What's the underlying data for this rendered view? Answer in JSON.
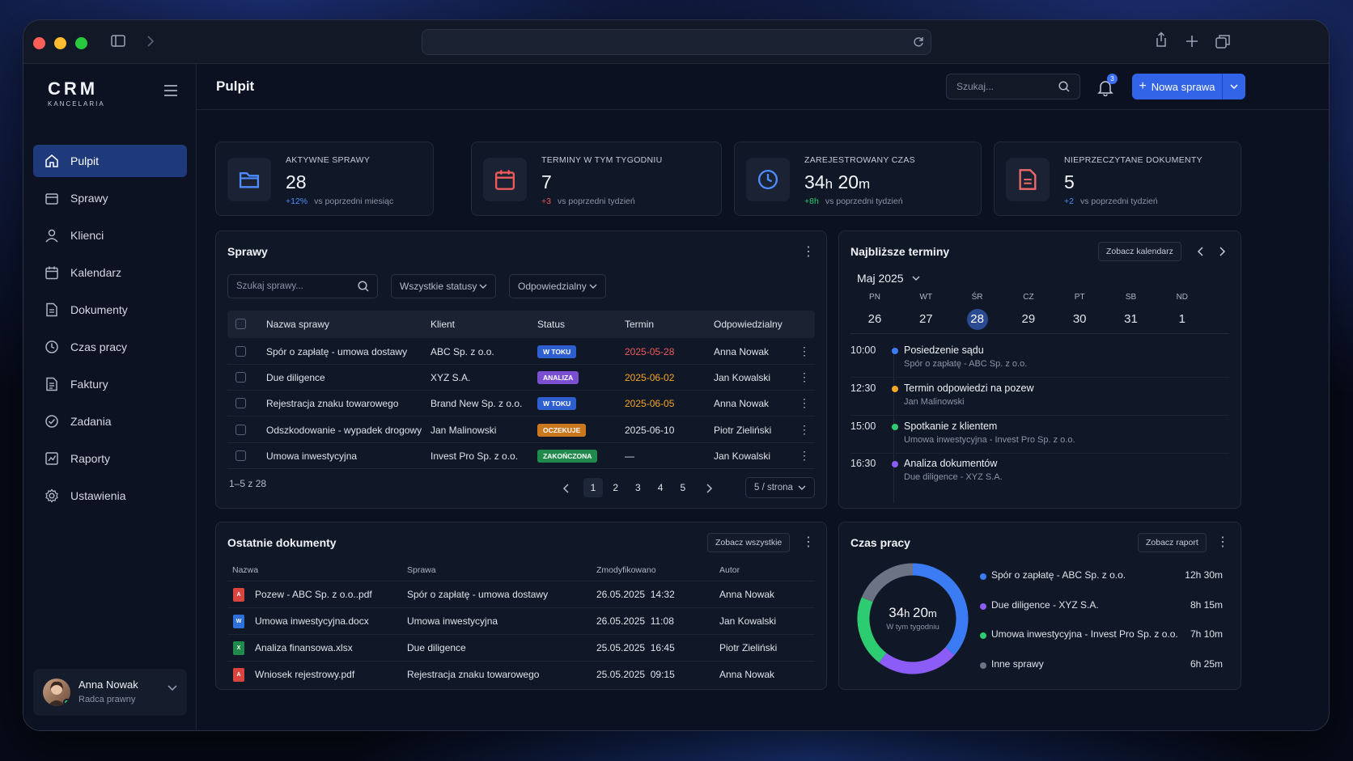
{
  "brand": {
    "name": "CRM",
    "sub": "KANCELARIA"
  },
  "header": {
    "title": "Pulpit",
    "search_placeholder": "Szukaj...",
    "notifications_count": "3",
    "new_case_label": "Nowa sprawa"
  },
  "sidebar": {
    "items": [
      {
        "label": "Pulpit",
        "icon": "home-icon"
      },
      {
        "label": "Sprawy",
        "icon": "briefcase-icon"
      },
      {
        "label": "Klienci",
        "icon": "user-icon"
      },
      {
        "label": "Kalendarz",
        "icon": "calendar-icon"
      },
      {
        "label": "Dokumenty",
        "icon": "document-icon"
      },
      {
        "label": "Czas pracy",
        "icon": "clock-icon"
      },
      {
        "label": "Faktury",
        "icon": "invoice-icon"
      },
      {
        "label": "Zadania",
        "icon": "check-circle-icon"
      },
      {
        "label": "Raporty",
        "icon": "chart-icon"
      },
      {
        "label": "Ustawienia",
        "icon": "gear-icon"
      }
    ],
    "user": {
      "name": "Anna Nowak",
      "role": "Radca prawny"
    }
  },
  "stats": [
    {
      "label": "AKTYWNE SPRAWY",
      "value": "28",
      "unit": "",
      "value2": "",
      "unit2": "",
      "delta": "+12%",
      "delta_color": "#4e8dff",
      "note": "vs poprzedni miesiąc",
      "icon": "folder-icon",
      "color": "#4e8dff"
    },
    {
      "label": "TERMINY W TYM TYGODNIU",
      "value": "7",
      "unit": "",
      "value2": "",
      "unit2": "",
      "delta": "+3",
      "delta_color": "#ef5b5b",
      "note": "vs poprzedni tydzień",
      "icon": "calendar-icon",
      "color": "#ef5b5b"
    },
    {
      "label": "ZAREJESTROWANY CZAS",
      "value": "34",
      "unit": "h",
      "value2": " 20",
      "unit2": "m",
      "delta": "+8h",
      "delta_color": "#2ecc71",
      "note": "vs poprzedni tydzień",
      "icon": "clock-icon",
      "color": "#4e8dff"
    },
    {
      "label": "NIEPRZECZYTANE DOKUMENTY",
      "value": "5",
      "unit": "",
      "value2": "",
      "unit2": "",
      "delta": "+2",
      "delta_color": "#4e8dff",
      "note": "vs poprzedni tydzień",
      "icon": "document-icon",
      "color": "#ef6a6a"
    }
  ],
  "cases": {
    "title": "Sprawy",
    "search_placeholder": "Szukaj sprawy...",
    "filter_status": "Wszystkie statusy",
    "filter_owner": "Odpowiedzialny",
    "columns": [
      "Nazwa sprawy",
      "Klient",
      "Status",
      "Termin",
      "Odpowiedzialny"
    ],
    "rows": [
      {
        "name": "Spór o zapłatę - umowa dostawy",
        "client": "ABC Sp. z o.o.",
        "status": "W TOKU",
        "status_color": "#2d5fd1",
        "due": "2025-05-28",
        "due_color": "#ef5b5b",
        "owner": "Anna Nowak"
      },
      {
        "name": "Due diligence",
        "client": "XYZ S.A.",
        "status": "ANALIZA",
        "status_color": "#7a4fd0",
        "due": "2025-06-02",
        "due_color": "#f5a623",
        "owner": "Jan Kowalski"
      },
      {
        "name": "Rejestracja znaku towarowego",
        "client": "Brand New Sp. z o.o.",
        "status": "W TOKU",
        "status_color": "#2d5fd1",
        "due": "2025-06-05",
        "due_color": "#f5a623",
        "owner": "Anna Nowak"
      },
      {
        "name": "Odszkodowanie - wypadek drogowy",
        "client": "Jan Malinowski",
        "status": "OCZEKUJE",
        "status_color": "#c9781e",
        "due": "2025-06-10",
        "due_color": "#dfe3ea",
        "owner": "Piotr Zieliński"
      },
      {
        "name": "Umowa inwestycyjna",
        "client": "Invest Pro Sp. z o.o.",
        "status": "ZAKOŃCZONA",
        "status_color": "#1f8a4c",
        "due": "—",
        "due_color": "#dfe3ea",
        "owner": "Jan Kowalski"
      }
    ],
    "range": "1–5 z 28",
    "pages": [
      "1",
      "2",
      "3",
      "4",
      "5"
    ],
    "per_page": "5 / strona"
  },
  "calendar": {
    "title": "Najbliższe terminy",
    "view_label": "Zobacz kalendarz",
    "month": "Maj 2025",
    "days": [
      {
        "dn": "PN",
        "num": "26"
      },
      {
        "dn": "WT",
        "num": "27"
      },
      {
        "dn": "ŚR",
        "num": "28"
      },
      {
        "dn": "CZ",
        "num": "29"
      },
      {
        "dn": "PT",
        "num": "30"
      },
      {
        "dn": "SB",
        "num": "31"
      },
      {
        "dn": "ND",
        "num": "1"
      }
    ],
    "events": [
      {
        "time": "10:00",
        "title": "Posiedzenie sądu",
        "sub": "Spór o zapłatę - ABC Sp. z o.o.",
        "color": "#3b7cf5"
      },
      {
        "time": "12:30",
        "title": "Termin odpowiedzi na pozew",
        "sub": "Jan Malinowski",
        "color": "#f5a623"
      },
      {
        "time": "15:00",
        "title": "Spotkanie z klientem",
        "sub": "Umowa inwestycyjna - Invest Pro Sp. z o.o.",
        "color": "#2ecc71"
      },
      {
        "time": "16:30",
        "title": "Analiza dokumentów",
        "sub": "Due diligence - XYZ S.A.",
        "color": "#8b5cf6"
      }
    ]
  },
  "documents": {
    "title": "Ostatnie dokumenty",
    "view_all_label": "Zobacz wszystkie",
    "columns": [
      "Nazwa",
      "Sprawa",
      "Zmodyfikowano",
      "Autor"
    ],
    "rows": [
      {
        "name": "Pozew - ABC Sp. z o.o..pdf",
        "case": "Spór o zapłatę - umowa dostawy",
        "modified": "26.05.2025  14:32",
        "author": "Anna Nowak",
        "type": "pdf-icon",
        "color": "#d9443f",
        "glyph": "A"
      },
      {
        "name": "Umowa inwestycyjna.docx",
        "case": "Umowa inwestycyjna",
        "modified": "26.05.2025  11:08",
        "author": "Jan Kowalski",
        "type": "word-icon",
        "color": "#2f6fd8",
        "glyph": "W"
      },
      {
        "name": "Analiza finansowa.xlsx",
        "case": "Due diligence",
        "modified": "25.05.2025  16:45",
        "author": "Piotr Zieliński",
        "type": "excel-icon",
        "color": "#1f8a4c",
        "glyph": "X"
      },
      {
        "name": "Wniosek rejestrowy.pdf",
        "case": "Rejestracja znaku towarowego",
        "modified": "25.05.2025  09:15",
        "author": "Anna Nowak",
        "type": "pdf-icon",
        "color": "#d9443f",
        "glyph": "A"
      }
    ]
  },
  "worktime": {
    "title": "Czas pracy",
    "report_label": "Zobacz raport",
    "total_h": "34",
    "total_m": "20",
    "total_sub": "W tym tygodniu",
    "items": [
      {
        "label": "Spór o zapłatę - ABC Sp. z o.o.",
        "value": "12h 30m",
        "minutes": 750,
        "color": "#3b7cf5"
      },
      {
        "label": "Due diligence - XYZ S.A.",
        "value": "8h 15m",
        "minutes": 495,
        "color": "#8b5cf6"
      },
      {
        "label": "Umowa inwestycyjna - Invest Pro Sp. z o.o.",
        "value": "7h 10m",
        "minutes": 430,
        "color": "#2ecc71"
      },
      {
        "label": "Inne sprawy",
        "value": "6h 25m",
        "minutes": 385,
        "color": "#6b7385"
      }
    ]
  }
}
